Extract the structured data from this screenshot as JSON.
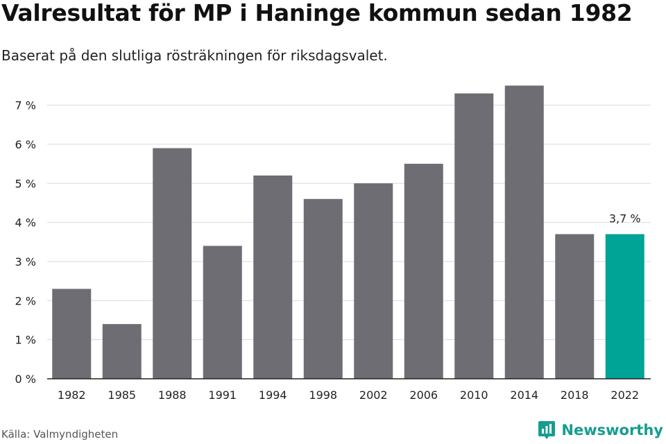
{
  "header": {
    "title": "Valresultat för MP i Haninge kommun sedan 1982",
    "subtitle": "Baserat på den slutliga rösträkningen för riksdagsvalet."
  },
  "footer": {
    "source": "Källa: Valmyndigheten",
    "brand": "Newsworthy"
  },
  "colors": {
    "bar": "#6e6d73",
    "highlight": "#00a496",
    "grid": "#d9d9d9",
    "axis": "#222222",
    "brand": "#159e90"
  },
  "chart_data": {
    "type": "bar",
    "categories": [
      "1982",
      "1985",
      "1988",
      "1991",
      "1994",
      "1998",
      "2002",
      "2006",
      "2010",
      "2014",
      "2018",
      "2022"
    ],
    "values": [
      2.3,
      1.4,
      5.9,
      3.4,
      5.2,
      4.6,
      5.0,
      5.5,
      7.3,
      7.5,
      3.7,
      3.7
    ],
    "ylim": [
      0,
      7.5
    ],
    "yticks": [
      0,
      1,
      2,
      3,
      4,
      5,
      6,
      7
    ],
    "ytick_labels": [
      "0 %",
      "1 %",
      "2 %",
      "3 %",
      "4 %",
      "5 %",
      "6 %",
      "7 %"
    ],
    "highlight_index": 11,
    "annotations": [
      {
        "category": "2022",
        "text": "3,7 %"
      }
    ],
    "grid": true
  }
}
